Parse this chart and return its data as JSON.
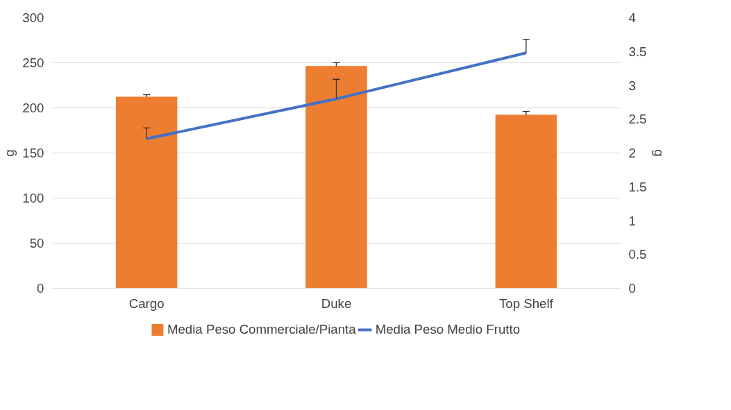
{
  "chart_data": {
    "type": "bar",
    "categories": [
      "Cargo",
      "Duke",
      "Top Shelf"
    ],
    "ylabel": "g",
    "y2label": "g",
    "ylim": [
      0,
      300
    ],
    "yticks": [
      0,
      50,
      100,
      150,
      200,
      250,
      300
    ],
    "y2lim": [
      0,
      4
    ],
    "y2ticks": [
      0,
      0.5,
      1,
      1.5,
      2,
      2.5,
      3,
      3.5,
      4
    ],
    "grid": "y",
    "legend": "bottom",
    "series": [
      {
        "name": "Media Peso Commerciale/Pianta",
        "color": "#ed7d31",
        "values": [
          212,
          246,
          192
        ],
        "errors": [
          [
            212,
            214.5
          ],
          [
            246,
            250
          ],
          [
            192,
            196
          ]
        ]
      },
      {
        "name": "Media Peso Medio Frutto",
        "color": "#4472c4",
        "type": "line",
        "axis": "y2",
        "values": [
          2.21,
          2.8,
          3.48
        ],
        "errors": [
          [
            2.21,
            2.37
          ],
          [
            2.8,
            3.09
          ],
          [
            3.48,
            3.68
          ]
        ]
      }
    ]
  }
}
